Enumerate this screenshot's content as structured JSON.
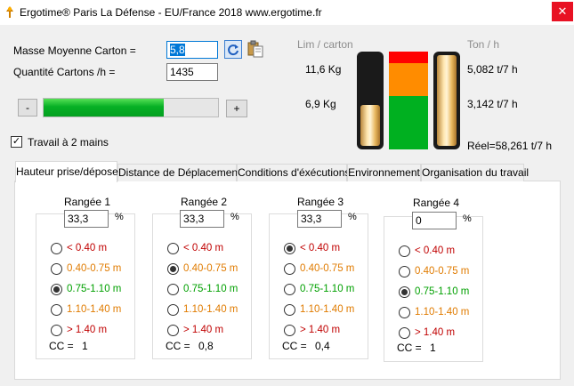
{
  "window": {
    "title": "Ergotime® Paris La Défense - EU/France 2018   www.ergotime.fr",
    "close_glyph": "✕"
  },
  "icons": {
    "app": "ergotime-app-icon",
    "refresh": "refresh-icon",
    "paste": "paste-icon"
  },
  "colors": {
    "accent": "#0078d7",
    "progress": "#06b025",
    "red": "#c00000",
    "orange": "#e07b00",
    "green": "#00a000",
    "indicator_red": "#ff0000",
    "indicator_orange": "#ff8c00",
    "indicator_green": "#00b020"
  },
  "form": {
    "masse_label": "Masse Moyenne Carton =",
    "masse_value": "5,8",
    "quantite_label": "Quantité Cartons /h =",
    "quantite_value": "1435",
    "minus_label": "-",
    "plus_label": "+",
    "progress_fraction": 0.69,
    "travail_label": "Travail à 2 mains",
    "travail_checked": true,
    "check_glyph": "✓"
  },
  "indicators": {
    "lim_header": "Lim / carton",
    "ton_header": "Ton / h",
    "lim_high": "11,6 Kg",
    "lim_low": "6,9 Kg",
    "ton_high": "5,082 t/7 h",
    "ton_low": "3,142 t/7 h",
    "reel": "Réel=58,261 t/7 h",
    "left_tube_fraction": 0.45,
    "right_tube_fraction": 1.0
  },
  "tabs": [
    {
      "label": "Hauteur prise/dépose",
      "active": true
    },
    {
      "label": "Distance de Déplacement",
      "active": false
    },
    {
      "label": "Conditions d'éxécutions",
      "active": false
    },
    {
      "label": "Environnement",
      "active": false
    },
    {
      "label": "Organisation du travail",
      "active": false
    }
  ],
  "options_labels": [
    "< 0.40 m",
    "0.40-0.75 m",
    "0.75-1.10 m",
    "1.10-1.40 m",
    "> 1.40 m"
  ],
  "rangees": [
    {
      "title": "Rangée 1",
      "value": "33,3",
      "percent": "%",
      "selected": 2,
      "cc_label": "CC =",
      "cc_value": "1"
    },
    {
      "title": "Rangée 2",
      "value": "33,3",
      "percent": "%",
      "selected": 1,
      "cc_label": "CC =",
      "cc_value": "0,8"
    },
    {
      "title": "Rangée 3",
      "value": "33,3",
      "percent": "%",
      "selected": 0,
      "cc_label": "CC =",
      "cc_value": "0,4"
    },
    {
      "title": "Rangée 4",
      "value": "0",
      "percent": "%",
      "selected": 2,
      "cc_label": "CC =",
      "cc_value": "1"
    }
  ]
}
